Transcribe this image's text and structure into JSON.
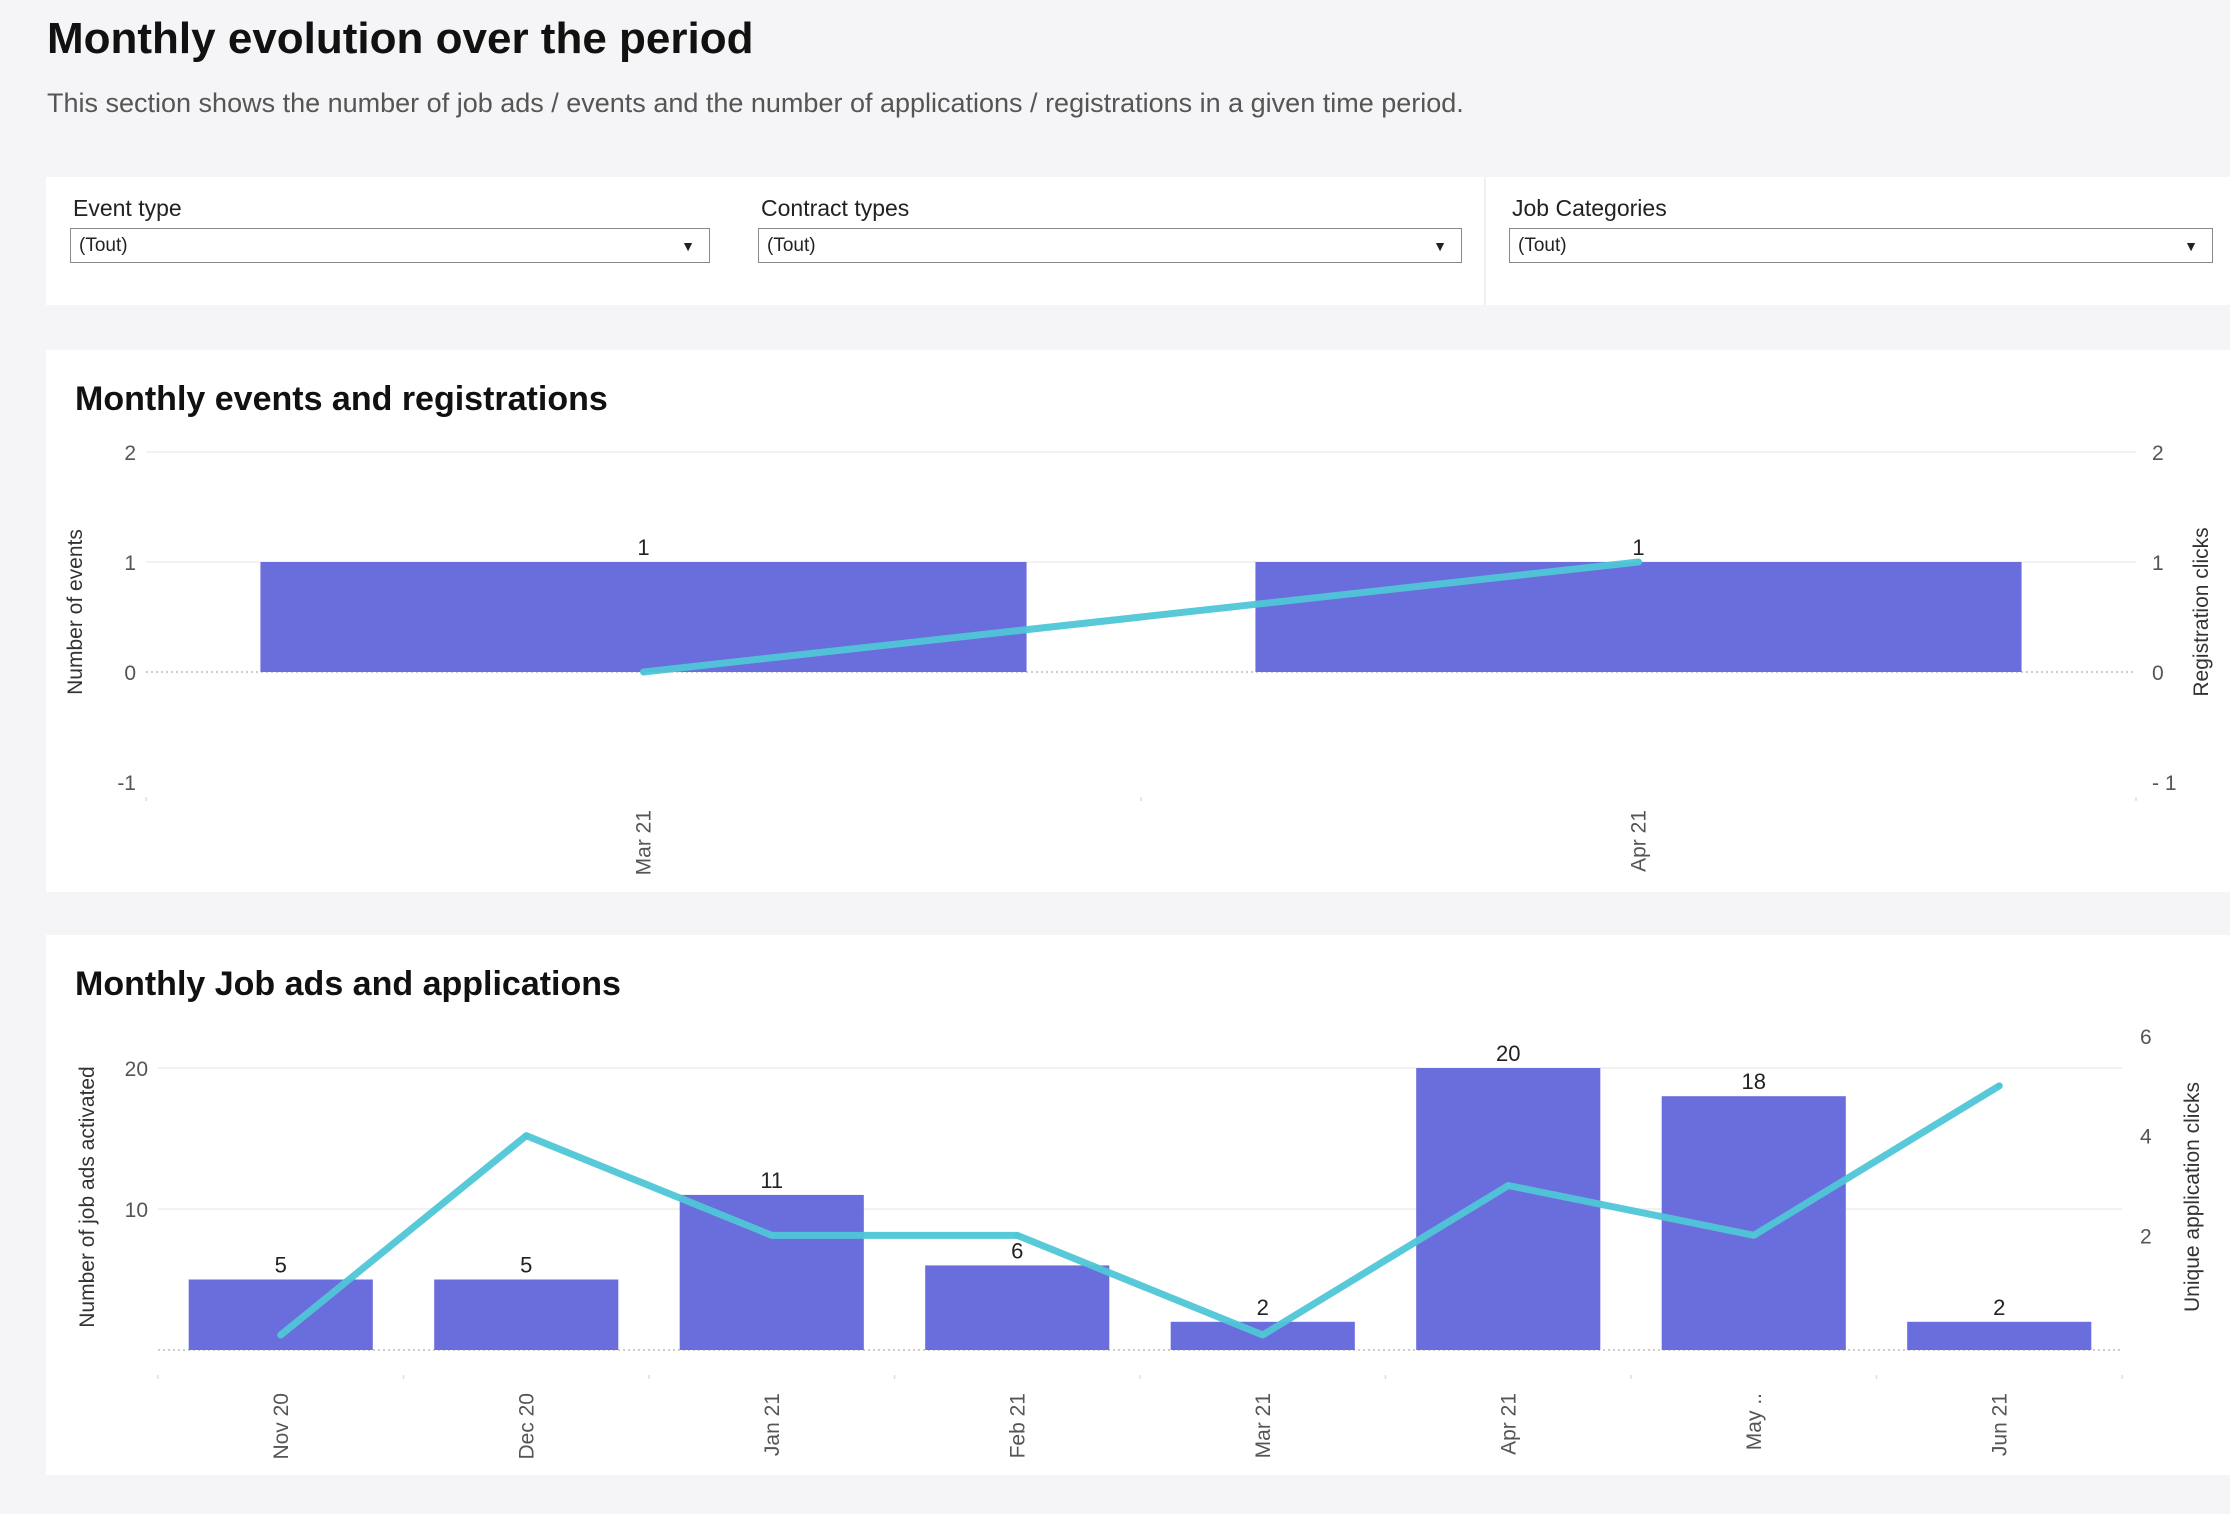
{
  "page": {
    "title": "Monthly evolution over the period",
    "subtitle": "This section shows the number of job ads / events and the number of applications / registrations in a given time period."
  },
  "filters": [
    {
      "label": "Event type",
      "value": "(Tout)"
    },
    {
      "label": "Contract types",
      "value": "(Tout)"
    },
    {
      "label": "Job Categories",
      "value": "(Tout)"
    }
  ],
  "colors": {
    "bar": "#6a6ddc",
    "line": "#4fc6d6"
  },
  "chart_data": [
    {
      "type": "bar",
      "title": "Monthly events and registrations",
      "categories": [
        "Mar 21",
        "Apr 21"
      ],
      "series": [
        {
          "name": "Number of events",
          "type": "bar",
          "axis": "left",
          "values": [
            1,
            1
          ]
        },
        {
          "name": "Registration clicks",
          "type": "line",
          "axis": "right",
          "values": [
            0,
            1
          ]
        }
      ],
      "bar_labels": [
        "1",
        "1"
      ],
      "ylabel": "Number of events",
      "ylabel_right": "Registration clicks",
      "ylim": [
        -1,
        2
      ],
      "ylim_right": [
        -1,
        2
      ],
      "yticks": [
        "2",
        "1",
        "0",
        "-1"
      ],
      "yticks_right": [
        "2",
        "1",
        "0",
        "- 1"
      ],
      "grid": true
    },
    {
      "type": "bar",
      "title": "Monthly Job ads and applications",
      "categories": [
        "Nov 20",
        "Dec 20",
        "Jan 21",
        "Feb 21",
        "Mar 21",
        "Apr 21",
        "May ..",
        "Jun 21"
      ],
      "series": [
        {
          "name": "Number of job ads activated",
          "type": "bar",
          "axis": "left",
          "values": [
            5,
            5,
            11,
            6,
            2,
            20,
            18,
            2
          ]
        },
        {
          "name": "Unique application clicks",
          "type": "line",
          "axis": "right",
          "values": [
            0,
            4,
            2,
            2,
            0,
            3,
            2,
            5
          ]
        }
      ],
      "bar_labels": [
        "5",
        "5",
        "11",
        "6",
        "2",
        "20",
        "18",
        "2"
      ],
      "ylabel": "Number of job ads activated",
      "ylabel_right": "Unique application clicks",
      "ylim": [
        0,
        20
      ],
      "ylim_right": [
        0,
        6
      ],
      "yticks": [
        "20",
        "10"
      ],
      "yticks_right": [
        "6",
        "4",
        "2"
      ],
      "grid": true
    }
  ]
}
